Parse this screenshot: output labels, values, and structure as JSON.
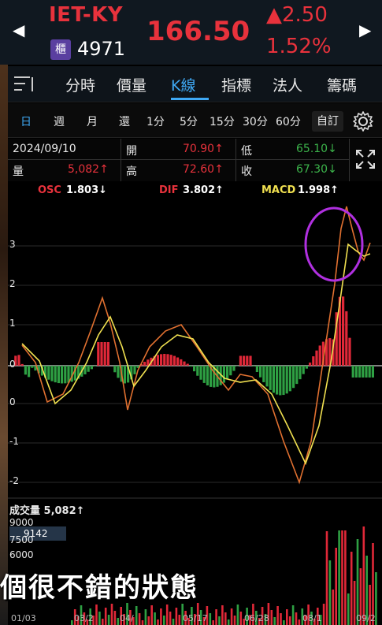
{
  "header": {
    "ticker": "IET-KY",
    "board": "櫃",
    "code": "4971",
    "price": "166.50",
    "change": "▲2.50",
    "change_pct": "1.52%",
    "prev_icon": "triangle-left-icon",
    "next_icon": "triangle-right-icon",
    "up_color": "#e8323c",
    "down_color": "#3cb44b"
  },
  "tabs": [
    "分時",
    "價量",
    "K線",
    "指標",
    "法人",
    "籌碼"
  ],
  "active_tab": "K線",
  "periods": [
    "日",
    "週",
    "月",
    "還",
    "1分",
    "5分",
    "15分",
    "30分",
    "60分"
  ],
  "active_period": "日",
  "custom_label": "自訂",
  "info": {
    "date": "2024/09/10",
    "volume_label": "量",
    "volume": "5,082↑",
    "open_label": "開",
    "open": "70.90↑",
    "high_label": "高",
    "high": "72.60↑",
    "low_label": "低",
    "low": "65.10↓",
    "close_label": "收",
    "close": "67.30↓"
  },
  "legend": {
    "osc_label": "OSC",
    "osc": "1.803↓",
    "dif_label": "DIF",
    "dif": "3.802↑",
    "macd_label": "MACD",
    "macd": "1.998↑"
  },
  "macd_axis": [
    "3",
    "2",
    "1",
    "0",
    "0",
    "-1",
    "-2"
  ],
  "volume": {
    "title": "成交量 5,082↑",
    "badge": "9142",
    "axis": [
      "9000",
      "7500",
      "6000"
    ]
  },
  "subtitle": "個很不錯的狀態",
  "dates": [
    "01/03",
    "03/2",
    "04/",
    "05/17",
    "06/28",
    "08/1",
    "09/2"
  ]
}
